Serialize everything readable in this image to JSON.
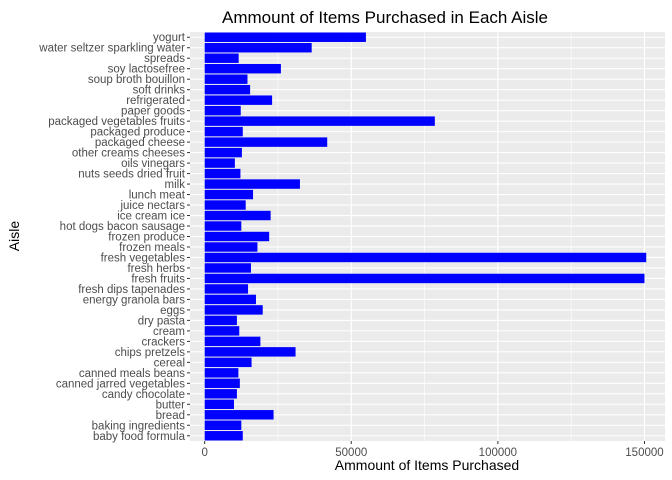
{
  "chart_data": {
    "type": "bar",
    "orientation": "horizontal",
    "title": "Ammount of Items Purchased in Each Aisle",
    "xlabel": "Ammount of Items Purchased",
    "ylabel": "Aisle",
    "xlim": [
      -5000,
      157000
    ],
    "xticks": [
      0,
      50000,
      100000,
      150000
    ],
    "xtick_labels": [
      "0",
      "50000",
      "100000",
      "150000"
    ],
    "grid": true,
    "bar_color": "#0000ff",
    "panel_color": "#ebebeb",
    "categories": [
      "baby food formula",
      "baking ingredients",
      "bread",
      "butter",
      "candy chocolate",
      "canned jarred vegetables",
      "canned meals beans",
      "cereal",
      "chips pretzels",
      "crackers",
      "cream",
      "dry pasta",
      "eggs",
      "energy granola bars",
      "fresh dips tapenades",
      "fresh fruits",
      "fresh herbs",
      "fresh vegetables",
      "frozen meals",
      "frozen produce",
      "hot dogs bacon sausage",
      "ice cream ice",
      "juice nectars",
      "lunch meat",
      "milk",
      "nuts seeds dried fruit",
      "oils vinegars",
      "other creams cheeses",
      "packaged cheese",
      "packaged produce",
      "packaged vegetables fruits",
      "paper goods",
      "refrigerated",
      "soft drinks",
      "soup broth bouillon",
      "soy lactosefree",
      "spreads",
      "water seltzer sparkling water",
      "yogurt"
    ],
    "values": [
      13000,
      12500,
      23500,
      10000,
      11000,
      12000,
      11500,
      16000,
      31000,
      19000,
      11800,
      11000,
      19800,
      17500,
      14800,
      150000,
      15800,
      150600,
      18000,
      22000,
      12500,
      22500,
      14000,
      16500,
      32500,
      12200,
      10300,
      12700,
      41800,
      13000,
      78500,
      12300,
      23000,
      15500,
      14600,
      26000,
      11600,
      36500,
      55000
    ]
  }
}
